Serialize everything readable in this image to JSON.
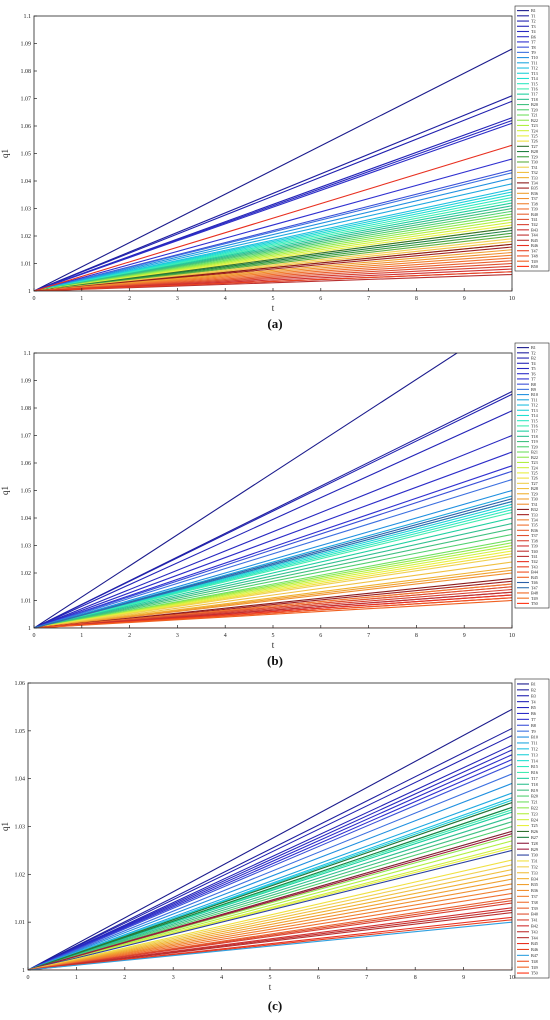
{
  "chart_data": [
    {
      "type": "line",
      "panel_label": "(a)",
      "xlabel": "t",
      "ylabel": "q1",
      "xlim": [
        0,
        10
      ],
      "ylim": [
        1,
        1.1
      ],
      "xticks": [
        "0",
        "1",
        "2",
        "3",
        "4",
        "5",
        "6",
        "7",
        "8",
        "9",
        "10"
      ],
      "yticks": [
        {
          "v": 1.0,
          "label": "1"
        },
        {
          "v": 1.01,
          "label": "1.01"
        },
        {
          "v": 1.02,
          "label": "1.02"
        },
        {
          "v": 1.03,
          "label": "1.03"
        },
        {
          "v": 1.04,
          "label": "1.04"
        },
        {
          "v": 1.05,
          "label": "1.05"
        },
        {
          "v": 1.06,
          "label": "1.06"
        },
        {
          "v": 1.07,
          "label": "1.07"
        },
        {
          "v": 1.08,
          "label": "1.08"
        },
        {
          "v": 1.09,
          "label": "1.09"
        },
        {
          "v": 1.1,
          "label": "1.1"
        }
      ],
      "grid": false,
      "legend": "right-outside",
      "series_shape": "linear from (0,1) to (10, end)",
      "series": [
        {
          "name": "B1",
          "color": "#1a1a8c",
          "end": 1.088
        },
        {
          "name": "T1",
          "color": "#1f1fa0",
          "end": 1.071
        },
        {
          "name": "T2",
          "color": "#2020b0",
          "end": 1.069
        },
        {
          "name": "T3",
          "color": "#2424b8",
          "end": 1.063
        },
        {
          "name": "T4",
          "color": "#2828c0",
          "end": 1.062
        },
        {
          "name": "B6",
          "color": "#2c2cc8",
          "end": 1.061
        },
        {
          "name": "T7",
          "color": "#3030d0",
          "end": 1.048
        },
        {
          "name": "T8",
          "color": "#3a50d8",
          "end": 1.044
        },
        {
          "name": "T9",
          "color": "#3c70e0",
          "end": 1.043
        },
        {
          "name": "T10",
          "color": "#2090e0",
          "end": 1.041
        },
        {
          "name": "T11",
          "color": "#20a8e0",
          "end": 1.039
        },
        {
          "name": "T12",
          "color": "#20c0e0",
          "end": 1.037
        },
        {
          "name": "T13",
          "color": "#20d0d8",
          "end": 1.036
        },
        {
          "name": "T14",
          "color": "#20e0d0",
          "end": 1.035
        },
        {
          "name": "T15",
          "color": "#30e8c0",
          "end": 1.034
        },
        {
          "name": "T16",
          "color": "#40ecb0",
          "end": 1.033
        },
        {
          "name": "T17",
          "color": "#20d0a0",
          "end": 1.032
        },
        {
          "name": "T18",
          "color": "#30c090",
          "end": 1.031
        },
        {
          "name": "B20",
          "color": "#40c080",
          "end": 1.03
        },
        {
          "name": "T20",
          "color": "#50d070",
          "end": 1.029
        },
        {
          "name": "T21",
          "color": "#70e060",
          "end": 1.028
        },
        {
          "name": "B22",
          "color": "#90e850",
          "end": 1.027
        },
        {
          "name": "T23",
          "color": "#b0f040",
          "end": 1.026
        },
        {
          "name": "T24",
          "color": "#d0f040",
          "end": 1.025
        },
        {
          "name": "T25",
          "color": "#e8f040",
          "end": 1.024
        },
        {
          "name": "T26",
          "color": "#f0e040",
          "end": 1.023
        },
        {
          "name": "T27",
          "color": "#307030",
          "end": 1.023
        },
        {
          "name": "B28",
          "color": "#208040",
          "end": 1.022
        },
        {
          "name": "T29",
          "color": "#40a040",
          "end": 1.021
        },
        {
          "name": "T30",
          "color": "#60b040",
          "end": 1.02
        },
        {
          "name": "T31",
          "color": "#f0d050",
          "end": 1.019
        },
        {
          "name": "T32",
          "color": "#f0c040",
          "end": 1.018
        },
        {
          "name": "T33",
          "color": "#f0b030",
          "end": 1.017
        },
        {
          "name": "T34",
          "color": "#8b1a1a",
          "end": 1.017
        },
        {
          "name": "B35",
          "color": "#a02020",
          "end": 1.016
        },
        {
          "name": "B36",
          "color": "#f0a030",
          "end": 1.015
        },
        {
          "name": "T37",
          "color": "#f09030",
          "end": 1.014
        },
        {
          "name": "T38",
          "color": "#f08030",
          "end": 1.013
        },
        {
          "name": "T39",
          "color": "#f07030",
          "end": 1.012
        },
        {
          "name": "B40",
          "color": "#e86030",
          "end": 1.011
        },
        {
          "name": "T41",
          "color": "#e05030",
          "end": 1.01
        },
        {
          "name": "T42",
          "color": "#d84030",
          "end": 1.009
        },
        {
          "name": "B43",
          "color": "#d03030",
          "end": 1.008
        },
        {
          "name": "T44",
          "color": "#c03030",
          "end": 1.007
        },
        {
          "name": "B45",
          "color": "#b83030",
          "end": 1.006
        },
        {
          "name": "B46",
          "color": "#e83020",
          "end": 1.053
        },
        {
          "name": "T47",
          "color": "#e84020",
          "end": 1.007
        },
        {
          "name": "T48",
          "color": "#f05020",
          "end": 1.0
        },
        {
          "name": "T49",
          "color": "#f06020",
          "end": 1.0
        },
        {
          "name": "B50",
          "color": "#ff3010",
          "end": 1.0
        }
      ]
    },
    {
      "type": "line",
      "panel_label": "(b)",
      "xlabel": "t",
      "ylabel": "q1",
      "xlim": [
        0,
        10
      ],
      "ylim": [
        1,
        1.1
      ],
      "xticks": [
        "0",
        "1",
        "2",
        "3",
        "4",
        "5",
        "6",
        "7",
        "8",
        "9",
        "10"
      ],
      "yticks": [
        {
          "v": 1.0,
          "label": "1"
        },
        {
          "v": 1.01,
          "label": "1.01"
        },
        {
          "v": 1.02,
          "label": "1.02"
        },
        {
          "v": 1.03,
          "label": "1.03"
        },
        {
          "v": 1.04,
          "label": "1.04"
        },
        {
          "v": 1.05,
          "label": "1.05"
        },
        {
          "v": 1.06,
          "label": "1.06"
        },
        {
          "v": 1.07,
          "label": "1.07"
        },
        {
          "v": 1.08,
          "label": "1.08"
        },
        {
          "v": 1.09,
          "label": "1.09"
        },
        {
          "v": 1.1,
          "label": "1.1"
        }
      ],
      "grid": false,
      "legend": "right-outside",
      "series_shape": "linear from (0,1) to (10, end)",
      "series": [
        {
          "name": "B1",
          "color": "#1a1a8c",
          "end": 1.113
        },
        {
          "name": "T2",
          "color": "#1f1fa0",
          "end": 1.086
        },
        {
          "name": "B2",
          "color": "#2020b0",
          "end": 1.085
        },
        {
          "name": "T4",
          "color": "#2424b8",
          "end": 1.079
        },
        {
          "name": "T5",
          "color": "#2828c0",
          "end": 1.07
        },
        {
          "name": "T6",
          "color": "#2c2cc8",
          "end": 1.064
        },
        {
          "name": "T7",
          "color": "#3030d0",
          "end": 1.059
        },
        {
          "name": "B8",
          "color": "#3a50d8",
          "end": 1.057
        },
        {
          "name": "B9",
          "color": "#3c70e0",
          "end": 1.054
        },
        {
          "name": "B10",
          "color": "#2090e0",
          "end": 1.05
        },
        {
          "name": "T11",
          "color": "#20a8e0",
          "end": 1.048
        },
        {
          "name": "T12",
          "color": "#20c0e0",
          "end": 1.046
        },
        {
          "name": "T13",
          "color": "#20d0d8",
          "end": 1.045
        },
        {
          "name": "T14",
          "color": "#20e0d0",
          "end": 1.044
        },
        {
          "name": "T15",
          "color": "#30e8c0",
          "end": 1.043
        },
        {
          "name": "T16",
          "color": "#40ecb0",
          "end": 1.042
        },
        {
          "name": "T17",
          "color": "#20d0a0",
          "end": 1.04
        },
        {
          "name": "T18",
          "color": "#30c090",
          "end": 1.038
        },
        {
          "name": "T19",
          "color": "#40c080",
          "end": 1.036
        },
        {
          "name": "T20",
          "color": "#50d070",
          "end": 1.034
        },
        {
          "name": "B21",
          "color": "#70e060",
          "end": 1.032
        },
        {
          "name": "B22",
          "color": "#90e850",
          "end": 1.031
        },
        {
          "name": "T23",
          "color": "#b0f040",
          "end": 1.03
        },
        {
          "name": "T24",
          "color": "#d0f040",
          "end": 1.029
        },
        {
          "name": "T25",
          "color": "#e8f040",
          "end": 1.028
        },
        {
          "name": "T26",
          "color": "#f0e040",
          "end": 1.027
        },
        {
          "name": "T27",
          "color": "#f0d050",
          "end": 1.026
        },
        {
          "name": "B28",
          "color": "#f0c040",
          "end": 1.024
        },
        {
          "name": "T29",
          "color": "#f0b030",
          "end": 1.022
        },
        {
          "name": "T30",
          "color": "#f0a030",
          "end": 1.021
        },
        {
          "name": "T31",
          "color": "#f09030",
          "end": 1.02
        },
        {
          "name": "B32",
          "color": "#8b1a1a",
          "end": 1.018
        },
        {
          "name": "T33",
          "color": "#a02020",
          "end": 1.017
        },
        {
          "name": "T34",
          "color": "#f08030",
          "end": 1.016
        },
        {
          "name": "T35",
          "color": "#f07030",
          "end": 1.016
        },
        {
          "name": "B36",
          "color": "#e86030",
          "end": 1.015
        },
        {
          "name": "T37",
          "color": "#e05030",
          "end": 1.015
        },
        {
          "name": "T38",
          "color": "#d84030",
          "end": 1.014
        },
        {
          "name": "T39",
          "color": "#d03030",
          "end": 1.013
        },
        {
          "name": "T40",
          "color": "#c03030",
          "end": 1.013
        },
        {
          "name": "T41",
          "color": "#b83030",
          "end": 1.012
        },
        {
          "name": "T42",
          "color": "#e83020",
          "end": 1.012
        },
        {
          "name": "T43",
          "color": "#e84020",
          "end": 1.011
        },
        {
          "name": "B44",
          "color": "#f05020",
          "end": 1.011
        },
        {
          "name": "B45",
          "color": "#f06020",
          "end": 1.01
        },
        {
          "name": "T46",
          "color": "#2a60a8",
          "end": 1.047
        },
        {
          "name": "T47",
          "color": "#3070b0",
          "end": 1.046
        },
        {
          "name": "B48",
          "color": "#f06820",
          "end": 1.0
        },
        {
          "name": "T49",
          "color": "#f07020",
          "end": 1.0
        },
        {
          "name": "T50",
          "color": "#ff3010",
          "end": 1.0
        }
      ]
    },
    {
      "type": "line",
      "panel_label": "(c)",
      "xlabel": "t",
      "ylabel": "q1",
      "xlim": [
        0,
        10
      ],
      "ylim": [
        1,
        1.06
      ],
      "xticks": [
        "0",
        "1",
        "2",
        "3",
        "4",
        "5",
        "6",
        "7",
        "8",
        "9",
        "10"
      ],
      "yticks": [
        {
          "v": 1.0,
          "label": "1"
        },
        {
          "v": 1.01,
          "label": "1.01"
        },
        {
          "v": 1.02,
          "label": "1.02"
        },
        {
          "v": 1.03,
          "label": "1.03"
        },
        {
          "v": 1.04,
          "label": "1.04"
        },
        {
          "v": 1.05,
          "label": "1.05"
        },
        {
          "v": 1.06,
          "label": "1.06"
        }
      ],
      "grid": false,
      "legend": "right-outside",
      "series_shape": "linear from (0,1) to (10, end)",
      "series": [
        {
          "name": "B1",
          "color": "#1a1a8c",
          "end": 1.0545
        },
        {
          "name": "B2",
          "color": "#1f1fa0",
          "end": 1.0505
        },
        {
          "name": "B3",
          "color": "#2020b0",
          "end": 1.049
        },
        {
          "name": "T4",
          "color": "#2424b8",
          "end": 1.047
        },
        {
          "name": "B5",
          "color": "#2828c0",
          "end": 1.046
        },
        {
          "name": "B6",
          "color": "#2c2cc8",
          "end": 1.045
        },
        {
          "name": "T7",
          "color": "#3030d0",
          "end": 1.044
        },
        {
          "name": "B8",
          "color": "#3a50d8",
          "end": 1.043
        },
        {
          "name": "T9",
          "color": "#3c70e0",
          "end": 1.041
        },
        {
          "name": "B10",
          "color": "#2090e0",
          "end": 1.039
        },
        {
          "name": "T11",
          "color": "#20a8e0",
          "end": 1.037
        },
        {
          "name": "T12",
          "color": "#20c0e0",
          "end": 1.036
        },
        {
          "name": "T13",
          "color": "#20d0d8",
          "end": 1.0355
        },
        {
          "name": "T14",
          "color": "#20e0d0",
          "end": 1.035
        },
        {
          "name": "B15",
          "color": "#30e8c0",
          "end": 1.034
        },
        {
          "name": "B16",
          "color": "#40ecb0",
          "end": 1.0335
        },
        {
          "name": "T17",
          "color": "#20d0a0",
          "end": 1.033
        },
        {
          "name": "T18",
          "color": "#30c090",
          "end": 1.032
        },
        {
          "name": "B19",
          "color": "#40c080",
          "end": 1.031
        },
        {
          "name": "B20",
          "color": "#50d070",
          "end": 1.03
        },
        {
          "name": "T21",
          "color": "#70e060",
          "end": 1.029
        },
        {
          "name": "B22",
          "color": "#90e850",
          "end": 1.028
        },
        {
          "name": "T23",
          "color": "#b0f040",
          "end": 1.027
        },
        {
          "name": "B24",
          "color": "#d0f040",
          "end": 1.026
        },
        {
          "name": "T25",
          "color": "#e8f040",
          "end": 1.0255
        },
        {
          "name": "B26",
          "color": "#307030",
          "end": 1.035
        },
        {
          "name": "B27",
          "color": "#208040",
          "end": 1.034
        },
        {
          "name": "T28",
          "color": "#8b1a3a",
          "end": 1.029
        },
        {
          "name": "B29",
          "color": "#a01a40",
          "end": 1.0285
        },
        {
          "name": "T30",
          "color": "#2a40a0",
          "end": 1.025
        },
        {
          "name": "T31",
          "color": "#f0e040",
          "end": 1.023
        },
        {
          "name": "T32",
          "color": "#f0d050",
          "end": 1.022
        },
        {
          "name": "T33",
          "color": "#f0c040",
          "end": 1.021
        },
        {
          "name": "B34",
          "color": "#f0b030",
          "end": 1.02
        },
        {
          "name": "B35",
          "color": "#f0a030",
          "end": 1.019
        },
        {
          "name": "B36",
          "color": "#f09030",
          "end": 1.018
        },
        {
          "name": "T37",
          "color": "#f08030",
          "end": 1.017
        },
        {
          "name": "T38",
          "color": "#f07030",
          "end": 1.016
        },
        {
          "name": "T39",
          "color": "#e86030",
          "end": 1.015
        },
        {
          "name": "B40",
          "color": "#e05030",
          "end": 1.0145
        },
        {
          "name": "T41",
          "color": "#d84030",
          "end": 1.014
        },
        {
          "name": "B42",
          "color": "#d03030",
          "end": 1.013
        },
        {
          "name": "T43",
          "color": "#c03030",
          "end": 1.0125
        },
        {
          "name": "T44",
          "color": "#b83030",
          "end": 1.012
        },
        {
          "name": "B45",
          "color": "#e83020",
          "end": 1.011
        },
        {
          "name": "B46",
          "color": "#e84020",
          "end": 1.0105
        },
        {
          "name": "B47",
          "color": "#30a0e0",
          "end": 1.01
        },
        {
          "name": "T48",
          "color": "#f05020",
          "end": 1.0
        },
        {
          "name": "T49",
          "color": "#f06020",
          "end": 1.0
        },
        {
          "name": "T50",
          "color": "#ff3010",
          "end": 1.0
        }
      ]
    }
  ]
}
